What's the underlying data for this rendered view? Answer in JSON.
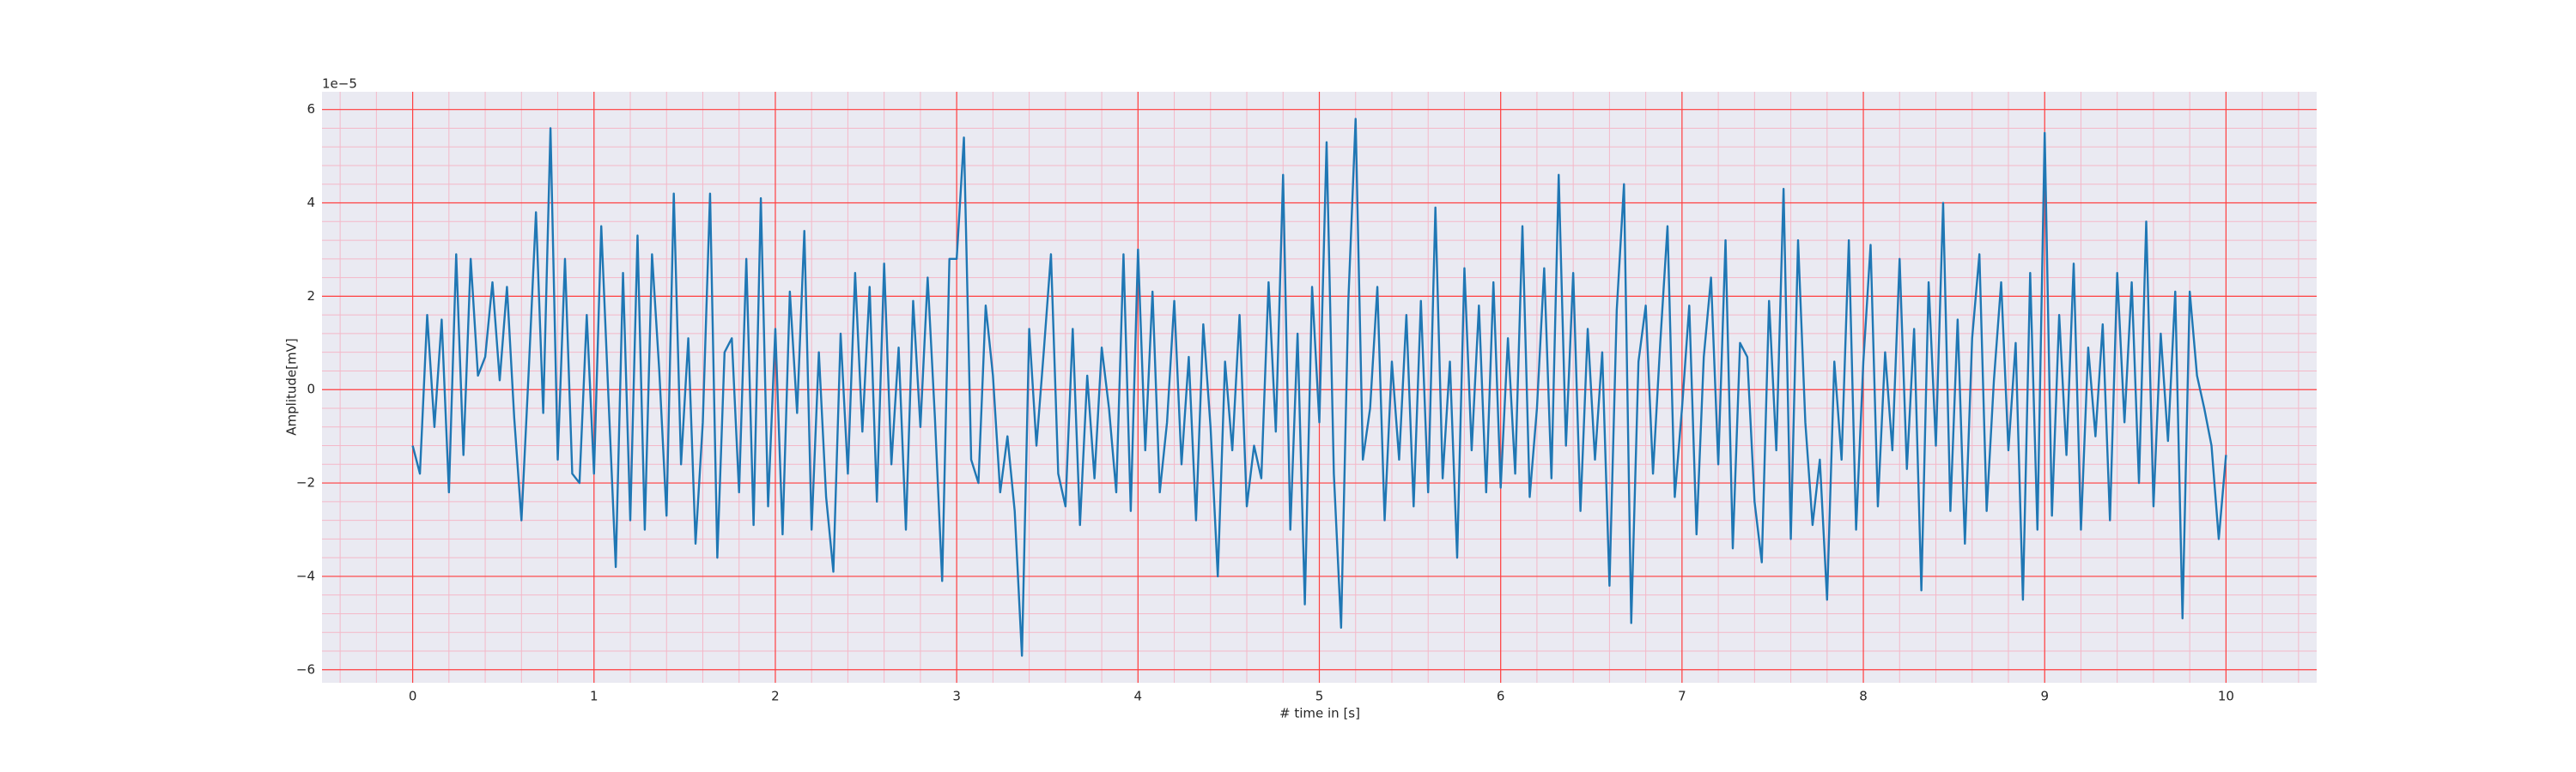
{
  "chart_data": {
    "type": "line",
    "xlabel": "# time in [s]",
    "ylabel": "Amplitude[mV]",
    "y_offset_text": "1e−5",
    "xlim": [
      -0.5,
      10.5
    ],
    "ylim": [
      -6.28,
      6.38
    ],
    "xticks": [
      0,
      1,
      2,
      3,
      4,
      5,
      6,
      7,
      8,
      9,
      10
    ],
    "yticks": [
      {
        "value": -6,
        "label": "−6"
      },
      {
        "value": -4,
        "label": "−4"
      },
      {
        "value": -2,
        "label": "−2"
      },
      0,
      2,
      4,
      6
    ],
    "grid": true,
    "grid_color": "#ff4040",
    "minor_grid": true,
    "minor_grid_color": "#f4b8c8",
    "background": "#eaeaf2",
    "x": [
      0,
      0.04,
      0.08,
      0.12,
      0.16,
      0.2,
      0.24,
      0.28,
      0.32,
      0.36,
      0.4,
      0.44,
      0.48,
      0.52,
      0.56,
      0.6,
      0.64,
      0.68,
      0.72,
      0.76,
      0.8,
      0.84,
      0.88,
      0.92,
      0.96,
      1,
      1.04,
      1.08,
      1.12,
      1.16,
      1.2,
      1.24,
      1.28,
      1.32,
      1.36,
      1.4,
      1.44,
      1.48,
      1.52,
      1.56,
      1.6,
      1.64,
      1.68,
      1.72,
      1.76,
      1.8,
      1.84,
      1.88,
      1.92,
      1.96,
      2,
      2.04,
      2.08,
      2.12,
      2.16,
      2.2,
      2.24,
      2.28,
      2.32,
      2.36,
      2.4,
      2.44,
      2.48,
      2.52,
      2.56,
      2.6,
      2.64,
      2.68,
      2.72,
      2.76,
      2.8,
      2.84,
      2.88,
      2.92,
      2.96,
      3,
      3.04,
      3.08,
      3.12,
      3.16,
      3.2,
      3.24,
      3.28,
      3.32,
      3.36,
      3.4,
      3.44,
      3.48,
      3.52,
      3.56,
      3.6,
      3.64,
      3.68,
      3.72,
      3.76,
      3.8,
      3.84,
      3.88,
      3.92,
      3.96,
      4,
      4.04,
      4.08,
      4.12,
      4.16,
      4.2,
      4.24,
      4.28,
      4.32,
      4.36,
      4.4,
      4.44,
      4.48,
      4.52,
      4.56,
      4.6,
      4.64,
      4.68,
      4.72,
      4.76,
      4.8,
      4.84,
      4.88,
      4.92,
      4.96,
      5,
      5.04,
      5.08,
      5.12,
      5.16,
      5.2,
      5.24,
      5.28,
      5.32,
      5.36,
      5.4,
      5.44,
      5.48,
      5.52,
      5.56,
      5.6,
      5.64,
      5.68,
      5.72,
      5.76,
      5.8,
      5.84,
      5.88,
      5.92,
      5.96,
      6,
      6.04,
      6.08,
      6.12,
      6.16,
      6.2,
      6.24,
      6.28,
      6.32,
      6.36,
      6.4,
      6.44,
      6.48,
      6.52,
      6.56,
      6.6,
      6.64,
      6.68,
      6.72,
      6.76,
      6.8,
      6.84,
      6.88,
      6.92,
      6.96,
      7,
      7.04,
      7.08,
      7.12,
      7.16,
      7.2,
      7.24,
      7.28,
      7.32,
      7.36,
      7.4,
      7.44,
      7.48,
      7.52,
      7.56,
      7.6,
      7.64,
      7.68,
      7.72,
      7.76,
      7.8,
      7.84,
      7.88,
      7.92,
      7.96,
      8,
      8.04,
      8.08,
      8.12,
      8.16,
      8.2,
      8.24,
      8.28,
      8.32,
      8.36,
      8.4,
      8.44,
      8.48,
      8.52,
      8.56,
      8.6,
      8.64,
      8.68,
      8.72,
      8.76,
      8.8,
      8.84,
      8.88,
      8.92,
      8.96,
      9,
      9.04,
      9.08,
      9.12,
      9.16,
      9.2,
      9.24,
      9.28,
      9.32,
      9.36,
      9.4,
      9.44,
      9.48,
      9.52,
      9.56,
      9.6,
      9.64,
      9.68,
      9.72,
      9.76,
      9.8,
      9.84,
      9.88,
      9.92,
      9.96,
      10
    ],
    "series": [
      {
        "color": "#1f77b4",
        "values": [
          -1.2,
          -1.8,
          1.6,
          -0.8,
          1.5,
          -2.2,
          2.9,
          -1.4,
          2.8,
          0.3,
          0.7,
          2.3,
          0.2,
          2.2,
          -0.6,
          -2.8,
          0.4,
          3.8,
          -0.5,
          5.6,
          -1.5,
          2.8,
          -1.8,
          -2.0,
          1.6,
          -1.8,
          3.5,
          -0.2,
          -3.8,
          2.5,
          -2.8,
          3.3,
          -3.0,
          2.9,
          0.4,
          -2.7,
          4.2,
          -1.6,
          1.1,
          -3.3,
          -0.7,
          4.2,
          -3.6,
          0.8,
          1.1,
          -2.2,
          2.8,
          -2.9,
          4.1,
          -2.5,
          1.3,
          -3.1,
          2.1,
          -0.5,
          3.4,
          -3.0,
          0.8,
          -2.3,
          -3.9,
          1.2,
          -1.8,
          2.5,
          -0.9,
          2.2,
          -2.4,
          2.7,
          -1.6,
          0.9,
          -3.0,
          1.9,
          -0.8,
          2.4,
          -0.6,
          -4.1,
          2.8,
          2.8,
          5.4,
          -1.5,
          -2.0,
          1.8,
          0.3,
          -2.2,
          -1.0,
          -2.6,
          -5.7,
          1.3,
          -1.2,
          0.8,
          2.9,
          -1.8,
          -2.5,
          1.3,
          -2.9,
          0.3,
          -1.9,
          0.9,
          -0.4,
          -2.2,
          2.9,
          -2.6,
          3.0,
          -1.3,
          2.1,
          -2.2,
          -0.7,
          1.9,
          -1.6,
          0.7,
          -2.8,
          1.4,
          -0.8,
          -4.0,
          0.6,
          -1.3,
          1.6,
          -2.5,
          -1.2,
          -1.9,
          2.3,
          -0.9,
          4.6,
          -3.0,
          1.2,
          -4.6,
          2.2,
          -0.7,
          5.3,
          -1.8,
          -5.1,
          1.9,
          5.8,
          -1.5,
          -0.4,
          2.2,
          -2.8,
          0.6,
          -1.5,
          1.6,
          -2.5,
          1.9,
          -2.2,
          3.9,
          -1.9,
          0.6,
          -3.6,
          2.6,
          -1.3,
          1.8,
          -2.2,
          2.3,
          -2.1,
          1.1,
          -1.8,
          3.5,
          -2.3,
          -0.4,
          2.6,
          -1.9,
          4.6,
          -1.2,
          2.5,
          -2.6,
          1.3,
          -1.5,
          0.8,
          -4.2,
          1.7,
          4.4,
          -5.0,
          0.6,
          1.8,
          -1.8,
          1.0,
          3.5,
          -2.3,
          -0.4,
          1.8,
          -3.1,
          0.7,
          2.4,
          -1.6,
          3.2,
          -3.4,
          1.0,
          0.7,
          -2.4,
          -3.7,
          1.9,
          -1.3,
          4.3,
          -3.2,
          3.2,
          -0.7,
          -2.9,
          -1.5,
          -4.5,
          0.6,
          -1.5,
          3.2,
          -3.0,
          0.6,
          3.1,
          -2.5,
          0.8,
          -1.3,
          2.8,
          -1.7,
          1.3,
          -4.3,
          2.3,
          -1.2,
          4.0,
          -2.6,
          1.5,
          -3.3,
          1.1,
          2.9,
          -2.6,
          0.2,
          2.3,
          -1.3,
          1.0,
          -4.5,
          2.5,
          -3.0,
          5.5,
          -2.7,
          1.6,
          -1.4,
          2.7,
          -3.0,
          0.9,
          -1.0,
          1.4,
          -2.8,
          2.5,
          -0.7,
          2.3,
          -2.0,
          3.6,
          -2.5,
          1.2,
          -1.1,
          2.1,
          -4.9,
          2.1,
          0.3,
          -0.4,
          -1.2,
          -3.2,
          -1.4
        ]
      }
    ]
  }
}
